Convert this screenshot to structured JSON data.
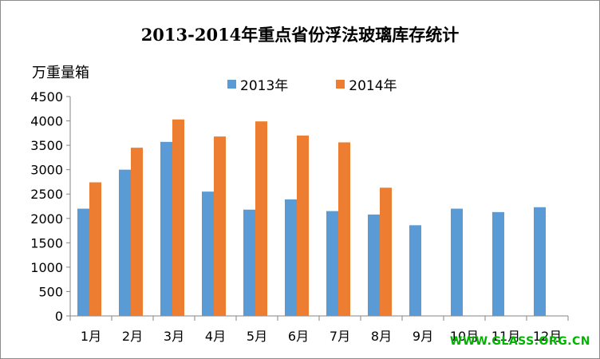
{
  "chart_data": {
    "type": "bar",
    "title": "2013-2014年重点省份浮法玻璃库存统计",
    "ylabel": "万重量箱",
    "xlabel": "",
    "categories": [
      "1月",
      "2月",
      "3月",
      "4月",
      "5月",
      "6月",
      "7月",
      "8月",
      "9月",
      "10月",
      "11月",
      "12月"
    ],
    "series": [
      {
        "name": "2013年",
        "color": "#5b9bd5",
        "values": [
          2200,
          3000,
          3570,
          2550,
          2180,
          2390,
          2150,
          2080,
          1860,
          2200,
          2130,
          2230
        ]
      },
      {
        "name": "2014年",
        "color": "#ed7d31",
        "values": [
          2740,
          3450,
          4030,
          3680,
          3990,
          3700,
          3560,
          2630,
          null,
          null,
          null,
          null
        ]
      }
    ],
    "ylim": [
      0,
      4500
    ],
    "yticks": [
      0,
      500,
      1000,
      1500,
      2000,
      2500,
      3000,
      3500,
      4000,
      4500
    ],
    "grid": false,
    "legend": "top"
  },
  "watermark": "WWW.GLASS.ORG.CN"
}
